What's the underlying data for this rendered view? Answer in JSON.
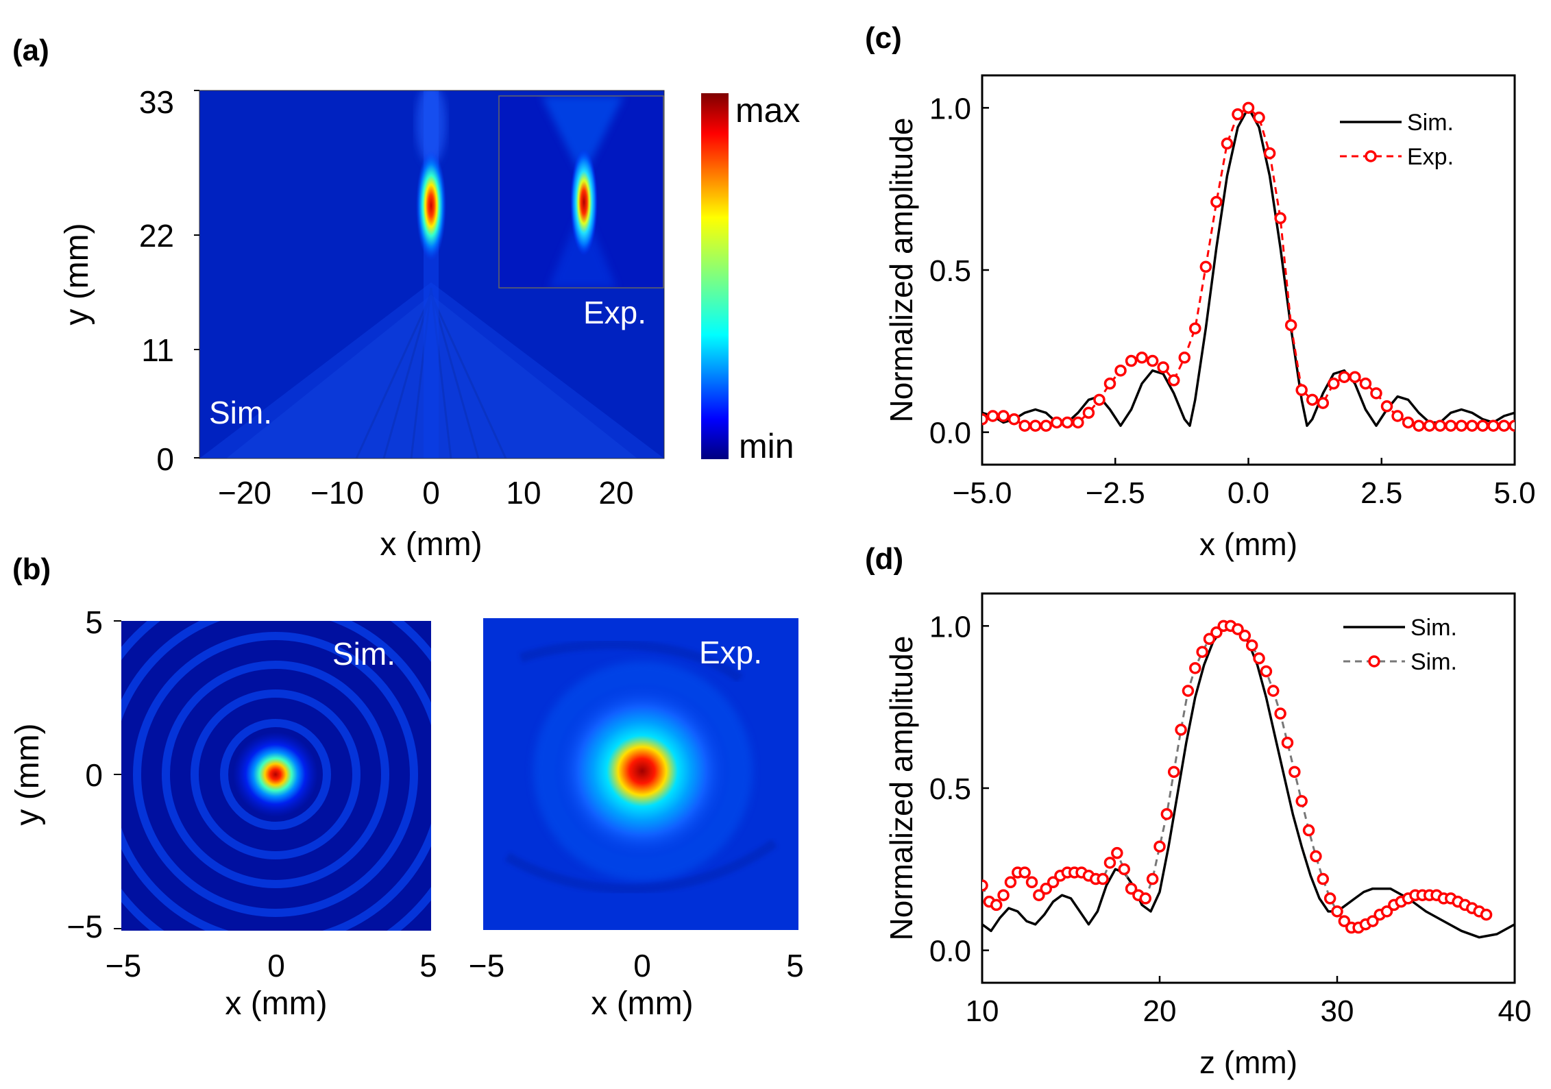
{
  "colors": {
    "sim_line": "#000000",
    "exp_marker": "#ff0000",
    "exp_line_d": "#777777",
    "cmap": [
      "#00007f",
      "#0000ff",
      "#007fff",
      "#00ffff",
      "#7fff7f",
      "#ffff00",
      "#ff7f00",
      "#ff0000",
      "#7f0000"
    ]
  },
  "panel_a": {
    "label": "(a)",
    "sim_label": "Sim.",
    "exp_label": "Exp.",
    "xlabel": "x (mm)",
    "ylabel": "y (mm)",
    "xticks": [
      "−20",
      "−10",
      "0",
      "10",
      "20"
    ],
    "yticks": [
      "33",
      "22",
      "11",
      "0"
    ],
    "colorbar": {
      "max_label": "max",
      "min_label": "min"
    }
  },
  "panel_b": {
    "label": "(b)",
    "sim_label": "Sim.",
    "exp_label": "Exp.",
    "xlabel": "x (mm)",
    "ylabel": "y (mm)",
    "xticks": [
      "−5",
      "0",
      "5"
    ],
    "yticks": [
      "5",
      "0",
      "−5"
    ]
  },
  "chart_data": [
    {
      "type": "heatmap",
      "panel": "(a)",
      "xlabel": "x (mm)",
      "ylabel": "y (mm)",
      "xlim": [
        -25,
        25
      ],
      "ylim": [
        0,
        33
      ],
      "annotations": [
        "Sim.",
        "Exp."
      ],
      "colorbar": [
        "min",
        "max"
      ]
    },
    {
      "type": "heatmap",
      "panel": "(b)",
      "xlabel": "x (mm)",
      "ylabel": "y (mm)",
      "xlim": [
        -5,
        5
      ],
      "ylim": [
        -5,
        5
      ],
      "annotations": [
        "Sim.",
        "Exp."
      ]
    },
    {
      "type": "line",
      "panel": "(c)",
      "xlabel": "x (mm)",
      "ylabel": "Normalized amplitude",
      "xlim": [
        -5,
        5
      ],
      "ylim": [
        -0.1,
        1.1
      ],
      "xticks": [
        "−5.0",
        "−2.5",
        "0.0",
        "2.5",
        "5.0"
      ],
      "yticks": [
        "0.0",
        "0.5",
        "1.0"
      ],
      "series": [
        {
          "name": "Sim.",
          "style": "solid",
          "x": [
            -5.0,
            -4.8,
            -4.6,
            -4.4,
            -4.2,
            -4.0,
            -3.8,
            -3.6,
            -3.4,
            -3.2,
            -3.0,
            -2.8,
            -2.6,
            -2.4,
            -2.2,
            -2.0,
            -1.8,
            -1.6,
            -1.4,
            -1.2,
            -1.1,
            -1.0,
            -0.8,
            -0.6,
            -0.4,
            -0.2,
            0.0,
            0.2,
            0.4,
            0.6,
            0.8,
            1.0,
            1.1,
            1.2,
            1.4,
            1.6,
            1.8,
            2.0,
            2.2,
            2.4,
            2.6,
            2.8,
            3.0,
            3.2,
            3.4,
            3.6,
            3.8,
            4.0,
            4.2,
            4.4,
            4.6,
            4.8,
            5.0
          ],
          "values": [
            0.06,
            0.05,
            0.03,
            0.04,
            0.06,
            0.07,
            0.06,
            0.03,
            0.03,
            0.06,
            0.1,
            0.11,
            0.07,
            0.02,
            0.07,
            0.15,
            0.19,
            0.18,
            0.12,
            0.04,
            0.02,
            0.1,
            0.32,
            0.57,
            0.79,
            0.94,
            1.0,
            0.94,
            0.79,
            0.57,
            0.32,
            0.1,
            0.02,
            0.04,
            0.12,
            0.18,
            0.19,
            0.15,
            0.07,
            0.02,
            0.07,
            0.11,
            0.1,
            0.06,
            0.03,
            0.03,
            0.06,
            0.07,
            0.06,
            0.04,
            0.03,
            0.05,
            0.06
          ]
        },
        {
          "name": "Exp.",
          "style": "dashed-circles",
          "x": [
            -5.0,
            -4.8,
            -4.6,
            -4.4,
            -4.2,
            -4.0,
            -3.8,
            -3.6,
            -3.4,
            -3.2,
            -3.0,
            -2.8,
            -2.6,
            -2.4,
            -2.2,
            -2.0,
            -1.8,
            -1.6,
            -1.4,
            -1.2,
            -1.0,
            -0.8,
            -0.6,
            -0.4,
            -0.2,
            0.0,
            0.2,
            0.4,
            0.6,
            0.8,
            1.0,
            1.2,
            1.4,
            1.6,
            1.8,
            2.0,
            2.2,
            2.4,
            2.6,
            2.8,
            3.0,
            3.2,
            3.4,
            3.6,
            3.8,
            4.0,
            4.2,
            4.4,
            4.6,
            4.8,
            5.0
          ],
          "values": [
            0.04,
            0.05,
            0.05,
            0.04,
            0.02,
            0.02,
            0.02,
            0.03,
            0.03,
            0.03,
            0.06,
            0.1,
            0.15,
            0.19,
            0.22,
            0.23,
            0.22,
            0.2,
            0.16,
            0.23,
            0.32,
            0.51,
            0.71,
            0.89,
            0.98,
            1.0,
            0.97,
            0.86,
            0.66,
            0.33,
            0.13,
            0.1,
            0.09,
            0.15,
            0.17,
            0.17,
            0.15,
            0.12,
            0.08,
            0.05,
            0.03,
            0.02,
            0.02,
            0.02,
            0.02,
            0.02,
            0.02,
            0.02,
            0.02,
            0.02,
            0.02
          ]
        }
      ],
      "legend": "top-right"
    },
    {
      "type": "line",
      "panel": "(d)",
      "xlabel": "z (mm)",
      "ylabel": "Normalized amplitude",
      "xlim": [
        10,
        40
      ],
      "ylim": [
        -0.1,
        1.1
      ],
      "xticks": [
        "10",
        "20",
        "30",
        "40"
      ],
      "yticks": [
        "0.0",
        "0.5",
        "1.0"
      ],
      "series": [
        {
          "name": "Sim.",
          "style": "solid",
          "x": [
            10.0,
            10.5,
            11.0,
            11.5,
            12.0,
            12.5,
            13.0,
            13.5,
            14.0,
            14.5,
            15.0,
            15.5,
            16.0,
            16.5,
            17.0,
            17.5,
            18.0,
            18.5,
            19.0,
            19.5,
            20.0,
            20.5,
            21.0,
            21.5,
            22.0,
            22.5,
            23.0,
            23.5,
            24.0,
            24.5,
            25.0,
            25.5,
            26.0,
            26.5,
            27.0,
            27.5,
            28.0,
            28.5,
            29.0,
            29.5,
            30.0,
            30.5,
            31.0,
            31.5,
            32.0,
            32.5,
            33.0,
            34.0,
            35.0,
            36.0,
            37.0,
            38.0,
            39.0,
            40.0
          ],
          "values": [
            0.08,
            0.06,
            0.1,
            0.13,
            0.12,
            0.09,
            0.08,
            0.11,
            0.15,
            0.17,
            0.16,
            0.12,
            0.08,
            0.12,
            0.2,
            0.25,
            0.24,
            0.2,
            0.14,
            0.12,
            0.18,
            0.32,
            0.48,
            0.64,
            0.78,
            0.88,
            0.95,
            0.99,
            1.0,
            0.99,
            0.95,
            0.88,
            0.78,
            0.66,
            0.54,
            0.42,
            0.32,
            0.23,
            0.16,
            0.12,
            0.12,
            0.14,
            0.16,
            0.18,
            0.19,
            0.19,
            0.19,
            0.16,
            0.12,
            0.09,
            0.06,
            0.04,
            0.05,
            0.08
          ]
        },
        {
          "name": "Sim.",
          "style": "dashed-circles",
          "x": [
            10.0,
            10.4,
            10.8,
            11.2,
            11.6,
            12.0,
            12.4,
            12.8,
            13.2,
            13.6,
            14.0,
            14.4,
            14.8,
            15.2,
            15.6,
            16.0,
            16.4,
            16.8,
            17.2,
            17.6,
            18.0,
            18.4,
            18.8,
            19.2,
            19.6,
            20.0,
            20.4,
            20.8,
            21.2,
            21.6,
            22.0,
            22.4,
            22.8,
            23.2,
            23.6,
            24.0,
            24.4,
            24.8,
            25.2,
            25.6,
            26.0,
            26.4,
            26.8,
            27.2,
            27.6,
            28.0,
            28.4,
            28.8,
            29.2,
            29.6,
            30.0,
            30.4,
            30.8,
            31.2,
            31.6,
            32.0,
            32.4,
            32.8,
            33.2,
            33.6,
            34.0,
            34.4,
            34.8,
            35.2,
            35.6,
            36.0,
            36.4,
            36.8,
            37.2,
            37.6,
            38.0,
            38.4
          ],
          "values": [
            0.2,
            0.15,
            0.14,
            0.17,
            0.21,
            0.24,
            0.24,
            0.21,
            0.17,
            0.19,
            0.21,
            0.23,
            0.24,
            0.24,
            0.24,
            0.23,
            0.22,
            0.22,
            0.27,
            0.3,
            0.25,
            0.19,
            0.17,
            0.16,
            0.22,
            0.32,
            0.42,
            0.55,
            0.68,
            0.8,
            0.87,
            0.92,
            0.96,
            0.98,
            1.0,
            1.0,
            0.99,
            0.97,
            0.94,
            0.9,
            0.86,
            0.8,
            0.73,
            0.64,
            0.55,
            0.46,
            0.37,
            0.29,
            0.22,
            0.16,
            0.12,
            0.09,
            0.07,
            0.07,
            0.08,
            0.09,
            0.11,
            0.12,
            0.14,
            0.15,
            0.16,
            0.17,
            0.17,
            0.17,
            0.17,
            0.16,
            0.16,
            0.15,
            0.14,
            0.13,
            0.12,
            0.11
          ]
        }
      ],
      "legend": "top-right"
    }
  ],
  "panel_c": {
    "label": "(c)"
  },
  "panel_d": {
    "label": "(d)"
  }
}
